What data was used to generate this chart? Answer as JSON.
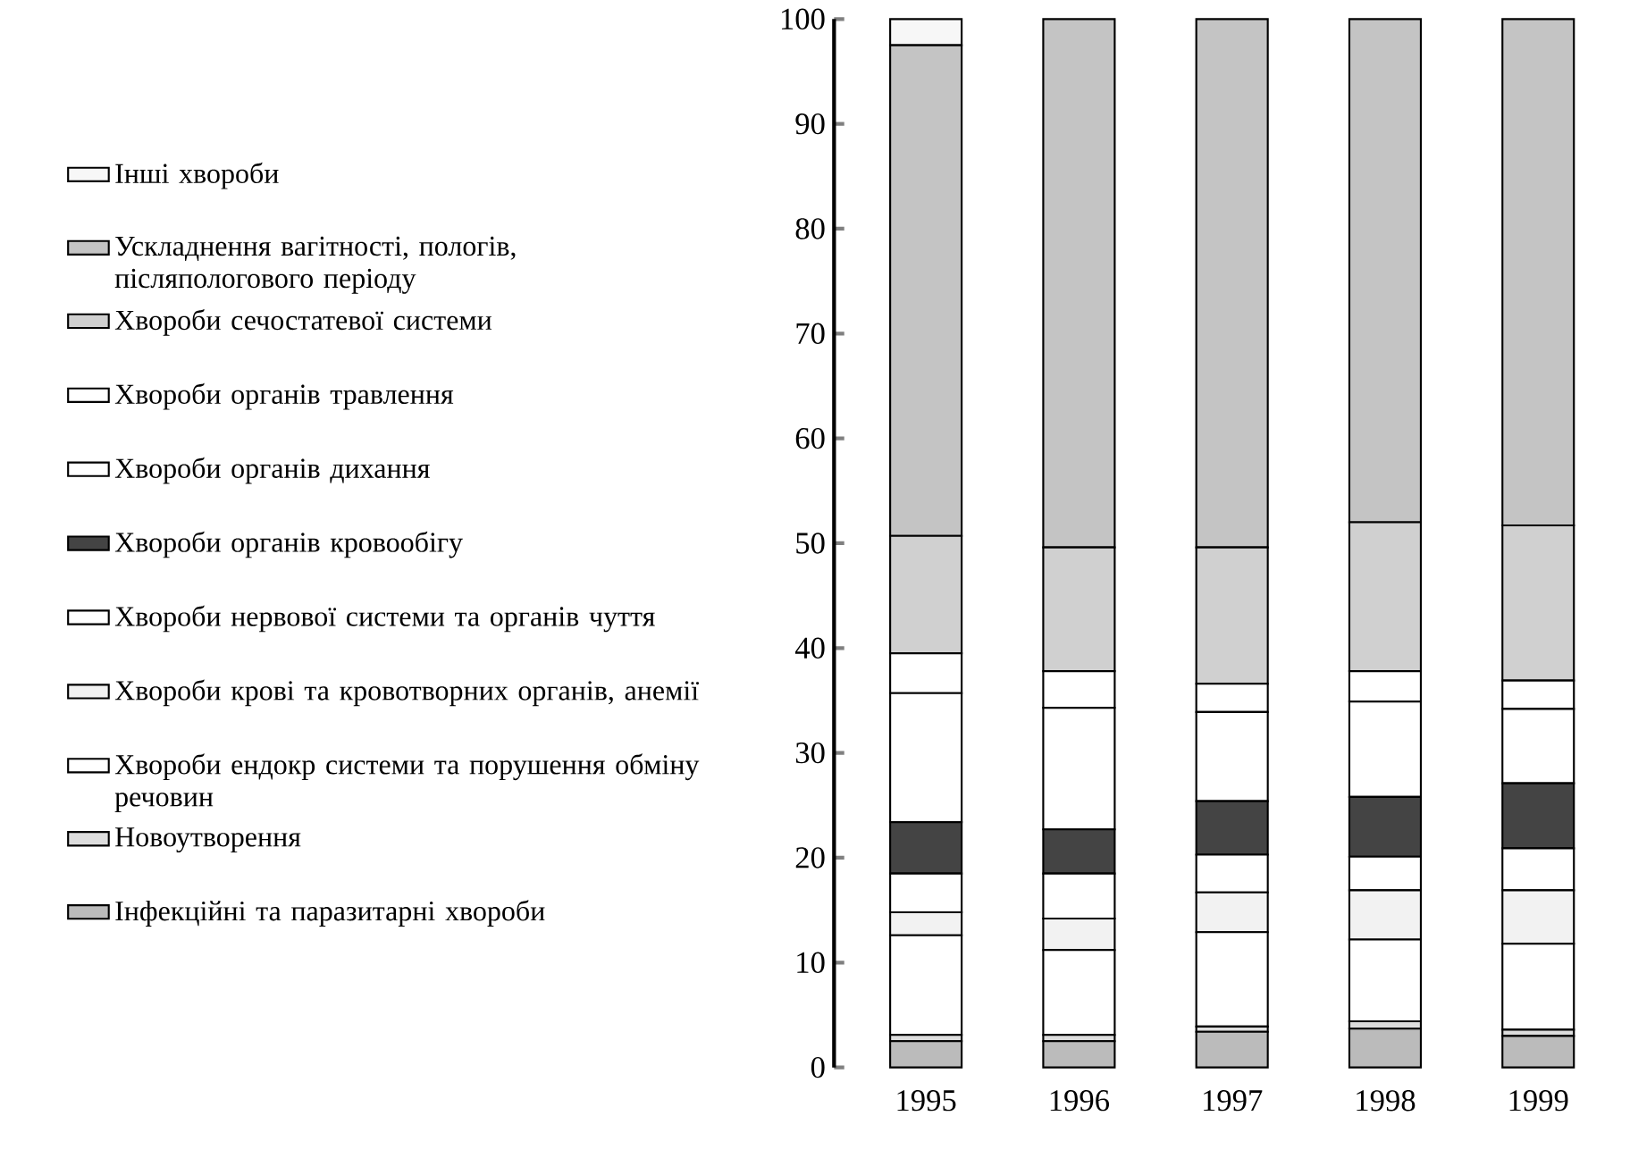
{
  "chart_data": {
    "type": "bar",
    "stacked": true,
    "categories": [
      "1995",
      "1996",
      "1997",
      "1998",
      "1999"
    ],
    "series": [
      {
        "name": "Інфекційні та паразитарні хвороби",
        "color": "#bbbbbb",
        "values": [
          2.5,
          2.5,
          3.4,
          3.7,
          3.0
        ]
      },
      {
        "name": "Новоутворення",
        "color": "#dddddd",
        "values": [
          0.6,
          0.6,
          0.5,
          0.7,
          0.6
        ]
      },
      {
        "name": "Хвороби ендокр системи та порушення обміну речовин",
        "color": "#ffffff",
        "values": [
          9.5,
          8.1,
          9.0,
          7.8,
          8.2
        ]
      },
      {
        "name": "Хвороби крові та кровотворних органів, анемії",
        "color": "#f2f2f2",
        "values": [
          2.2,
          3.0,
          3.8,
          4.7,
          5.1
        ]
      },
      {
        "name": "Хвороби нервової системи та органів чуття",
        "color": "#ffffff",
        "values": [
          3.7,
          4.3,
          3.6,
          3.2,
          4.0
        ]
      },
      {
        "name": "Хвороби органів кровообігу",
        "color": "#444444",
        "values": [
          4.9,
          4.2,
          5.1,
          5.7,
          6.2
        ]
      },
      {
        "name": "Хвороби органів дихання",
        "color": "#ffffff",
        "values": [
          12.3,
          11.6,
          8.5,
          9.1,
          7.1
        ]
      },
      {
        "name": "Хвороби органів травлення",
        "color": "#ffffff",
        "values": [
          3.8,
          3.5,
          2.7,
          2.9,
          2.7
        ]
      },
      {
        "name": "Хвороби сечостатевої системи",
        "color": "#d0d0d0",
        "values": [
          11.2,
          11.8,
          13.0,
          14.2,
          14.8
        ]
      },
      {
        "name": "Ускладнення вагітності, пологів, післяпологового періоду",
        "color": "#c4c4c4",
        "values": [
          46.8,
          50.4,
          50.4,
          48.0,
          48.3
        ]
      },
      {
        "name": "Інші хвороби",
        "color": "#f7f7f7",
        "values": [
          2.5,
          0,
          0,
          0,
          0
        ]
      }
    ],
    "ylim": [
      0,
      100
    ],
    "yticks": [
      0,
      10,
      20,
      30,
      40,
      50,
      60,
      70,
      80,
      90,
      100
    ],
    "legend": "left"
  }
}
